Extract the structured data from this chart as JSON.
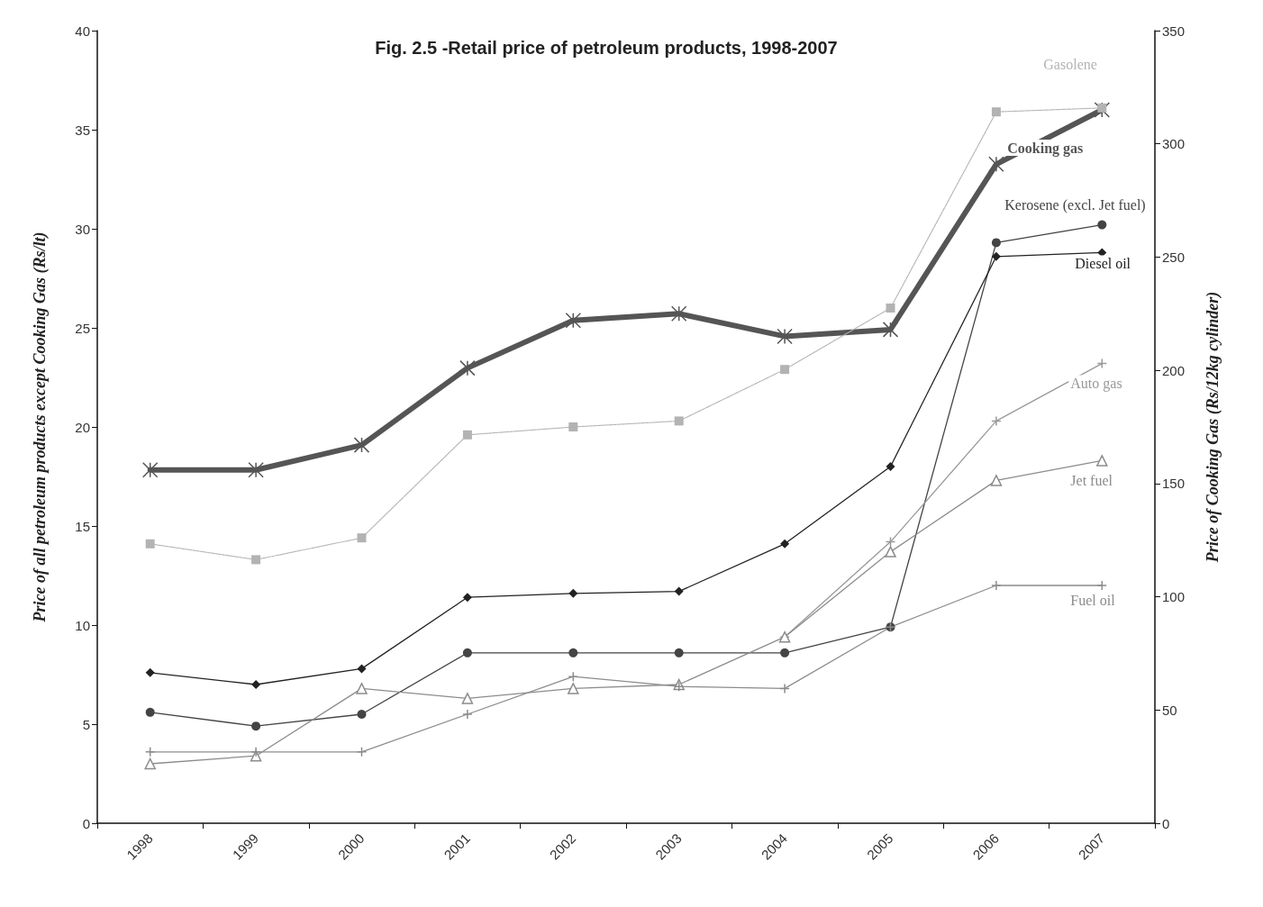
{
  "chart_data": {
    "type": "line",
    "title": "Fig. 2.5 -Retail price of petroleum products, 1998-2007",
    "ylabel": "Price of all petroleum products except Cooking Gas (Rs/lt)",
    "y2label": "Price of Cooking Gas (Rs/12kg cylinder)",
    "categories": [
      "1998",
      "1999",
      "2000",
      "2001",
      "2002",
      "2003",
      "2004",
      "2005",
      "2006",
      "2007"
    ],
    "ylim": [
      0,
      40
    ],
    "yticks": [
      0,
      5,
      10,
      15,
      20,
      25,
      30,
      35,
      40
    ],
    "y2lim": [
      0,
      350
    ],
    "y2ticks": [
      0,
      50,
      100,
      150,
      200,
      250,
      300,
      350
    ],
    "grid": false,
    "legend": false,
    "series": [
      {
        "name": "Gasolene",
        "color": "#b3b3b3",
        "marker": "square",
        "line_style": "dotted",
        "values": [
          14.1,
          13.3,
          14.4,
          19.6,
          20.0,
          20.3,
          22.9,
          26.0,
          35.9,
          36.1
        ]
      },
      {
        "name": "Cooking gas",
        "color": "#555555",
        "marker": "cross",
        "line_style": "solid",
        "axis": "y2",
        "values": [
          156,
          156,
          167,
          201,
          222,
          225,
          215,
          218,
          291,
          315
        ]
      },
      {
        "name": "Kerosene (excl. Jet fuel)",
        "color": "#444444",
        "marker": "circle",
        "line_style": "solid",
        "values": [
          5.6,
          4.9,
          5.5,
          8.6,
          8.6,
          8.6,
          8.6,
          9.9,
          29.3,
          30.2
        ]
      },
      {
        "name": "Diesel oil",
        "color": "#222222",
        "marker": "diamond",
        "line_style": "solid",
        "values": [
          7.6,
          7.0,
          7.8,
          11.4,
          11.6,
          11.7,
          14.1,
          18.0,
          28.6,
          28.8
        ]
      },
      {
        "name": "Auto gas",
        "color": "#999999",
        "marker": "cross",
        "line_style": "solid",
        "values": [
          null,
          null,
          null,
          null,
          null,
          null,
          9.4,
          14.2,
          20.3,
          23.2
        ]
      },
      {
        "name": "Jet fuel",
        "color": "#8c8c8c",
        "marker": "triangle",
        "line_style": "solid",
        "values": [
          3.0,
          3.4,
          6.8,
          6.3,
          6.8,
          7.0,
          9.4,
          13.7,
          17.3,
          18.3
        ]
      },
      {
        "name": "Fuel oil",
        "color": "#8c8c8c",
        "marker": "cross",
        "line_style": "solid",
        "values": [
          3.6,
          3.6,
          3.6,
          5.5,
          7.4,
          6.9,
          6.8,
          9.9,
          12.0,
          12.0
        ]
      }
    ]
  }
}
